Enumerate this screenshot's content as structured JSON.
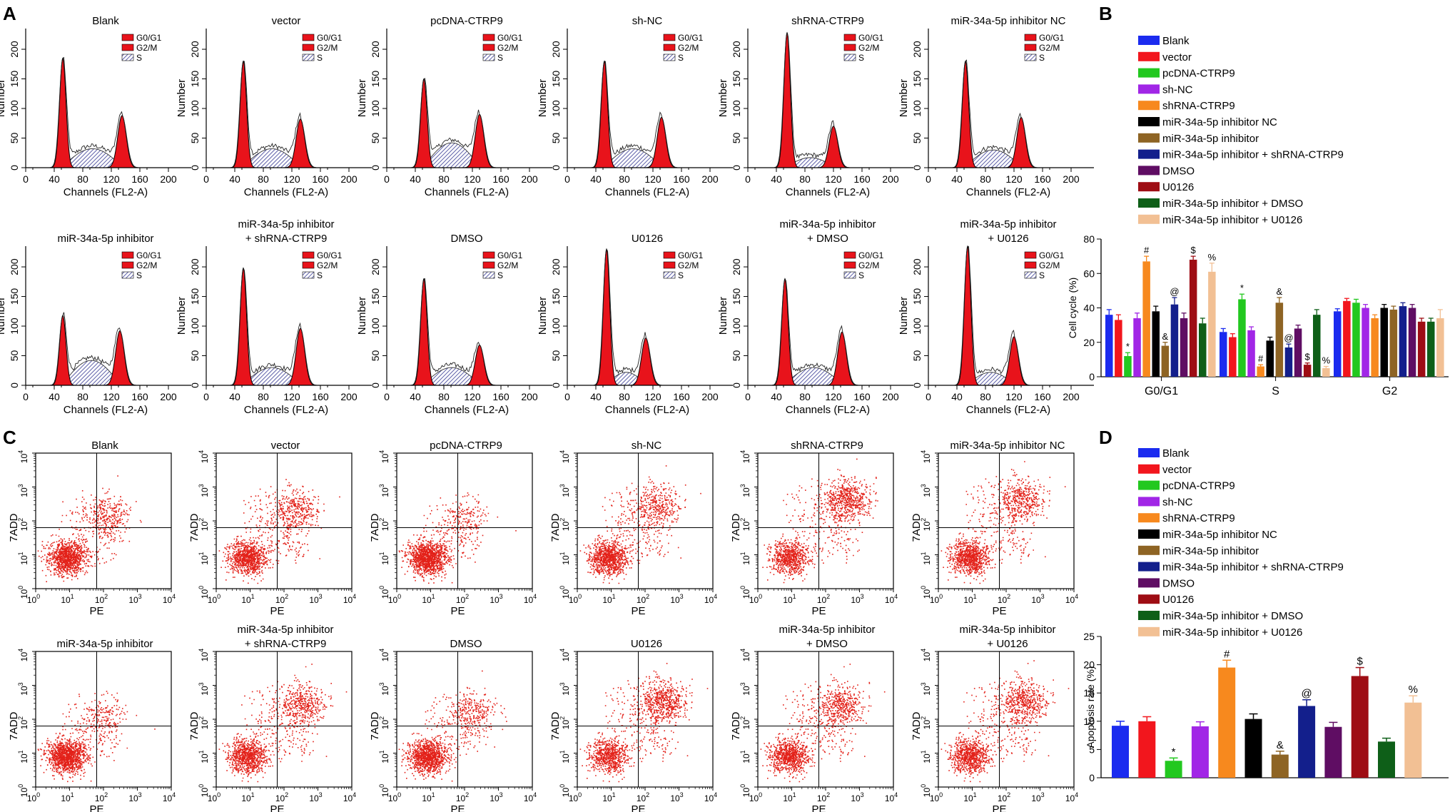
{
  "figure": {
    "panel_labels": [
      "A",
      "B",
      "C",
      "D"
    ],
    "colors": {
      "peak": "#e8131b",
      "s_fill": "#5d5fa8",
      "dot": "#e32119",
      "axis": "#000000"
    }
  },
  "chart_data": [
    {
      "panel": "A",
      "type": "histogram",
      "xlabel": "Channels (FL2-A)",
      "ylabel": "Number",
      "x_ticks": [
        "0",
        "40",
        "80",
        "120",
        "160",
        "200"
      ],
      "y_ticks": [
        "0",
        "50",
        "100",
        "150",
        "200"
      ],
      "xlim": [
        0,
        200
      ],
      "ylim": [
        0,
        235
      ],
      "legend": [
        "G0/G1",
        "G2/M",
        "S"
      ],
      "plots": [
        {
          "title": [
            "Blank"
          ],
          "g1": 52,
          "g1h": 185,
          "g2": 135,
          "g2h": 88,
          "s": 30
        },
        {
          "title": [
            "vector"
          ],
          "g1": 52,
          "g1h": 180,
          "g2": 132,
          "g2h": 82,
          "s": 30
        },
        {
          "title": [
            "pcDNA-CTRP9"
          ],
          "g1": 52,
          "g1h": 150,
          "g2": 130,
          "g2h": 90,
          "s": 40
        },
        {
          "title": [
            "sh-NC"
          ],
          "g1": 52,
          "g1h": 180,
          "g2": 132,
          "g2h": 85,
          "s": 30
        },
        {
          "title": [
            "shRNA-CTRP9"
          ],
          "g1": 55,
          "g1h": 228,
          "g2": 120,
          "g2h": 70,
          "s": 15
        },
        {
          "title": [
            "miR-34a-5p inhibitor NC"
          ],
          "g1": 52,
          "g1h": 180,
          "g2": 130,
          "g2h": 85,
          "s": 28
        },
        {
          "title": [
            "miR-34a-5p inhibitor"
          ],
          "g1": 52,
          "g1h": 118,
          "g2": 132,
          "g2h": 92,
          "s": 40
        },
        {
          "title": [
            "miR-34a-5p inhibitor",
            "+ shRNA-CTRP9"
          ],
          "g1": 52,
          "g1h": 198,
          "g2": 132,
          "g2h": 96,
          "s": 28
        },
        {
          "title": [
            "DMSO"
          ],
          "g1": 52,
          "g1h": 180,
          "g2": 130,
          "g2h": 68,
          "s": 28
        },
        {
          "title": [
            "U0126"
          ],
          "g1": 55,
          "g1h": 230,
          "g2": 110,
          "g2h": 80,
          "s": 20
        },
        {
          "title": [
            "miR-34a-5p inhibitor",
            "+ DMSO"
          ],
          "g1": 52,
          "g1h": 180,
          "g2": 132,
          "g2h": 90,
          "s": 28
        },
        {
          "title": [
            "miR-34a-5p inhibitor",
            "+ U0126"
          ],
          "g1": 55,
          "g1h": 235,
          "g2": 120,
          "g2h": 82,
          "s": 20
        }
      ]
    },
    {
      "panel": "B",
      "type": "bar",
      "ylabel": "Cell cycle (%)",
      "ylim": [
        0,
        80
      ],
      "y_ticks": [
        "0",
        "20",
        "40",
        "60",
        "80"
      ],
      "categories": [
        "G0/G1",
        "S",
        "G2"
      ],
      "series": [
        {
          "name": "Blank",
          "color": "#1b2bef",
          "values": [
            36,
            26,
            38
          ],
          "errors": [
            3,
            2,
            1.5
          ],
          "sig": [
            "",
            "",
            ""
          ]
        },
        {
          "name": "vector",
          "color": "#f2161d",
          "values": [
            33,
            23,
            44
          ],
          "errors": [
            3,
            2,
            1.5
          ],
          "sig": [
            "",
            "",
            ""
          ]
        },
        {
          "name": "pcDNA-CTRP9",
          "color": "#22c81f",
          "values": [
            12,
            45,
            43
          ],
          "errors": [
            2,
            3,
            2
          ],
          "sig": [
            "*",
            "*",
            ""
          ]
        },
        {
          "name": "sh-NC",
          "color": "#a126e6",
          "values": [
            34,
            27,
            40
          ],
          "errors": [
            3,
            2,
            2
          ],
          "sig": [
            "",
            "",
            ""
          ]
        },
        {
          "name": "shRNA-CTRP9",
          "color": "#f7891e",
          "values": [
            67,
            6,
            34
          ],
          "errors": [
            3,
            1,
            2
          ],
          "sig": [
            "#",
            "#",
            ""
          ]
        },
        {
          "name": "miR-34a-5p inhibitor NC",
          "color": "#000000",
          "values": [
            38,
            21,
            40
          ],
          "errors": [
            3,
            2,
            2
          ],
          "sig": [
            "",
            "",
            ""
          ]
        },
        {
          "name": "miR-34a-5p inhibitor",
          "color": "#8e6424",
          "values": [
            18,
            43,
            39
          ],
          "errors": [
            2,
            3,
            2
          ],
          "sig": [
            "&",
            "&",
            ""
          ]
        },
        {
          "name": "miR-34a-5p inhibitor + shRNA-CTRP9",
          "color": "#131f8c",
          "values": [
            42,
            17,
            41
          ],
          "errors": [
            4,
            2,
            2
          ],
          "sig": [
            "@",
            "@",
            ""
          ]
        },
        {
          "name": "DMSO",
          "color": "#5f0d63",
          "values": [
            34,
            28,
            40
          ],
          "errors": [
            3,
            2,
            2
          ],
          "sig": [
            "",
            "",
            ""
          ]
        },
        {
          "name": "U0126",
          "color": "#9e0d14",
          "values": [
            68,
            7,
            32
          ],
          "errors": [
            2,
            1,
            2
          ],
          "sig": [
            "$",
            "$",
            ""
          ]
        },
        {
          "name": "miR-34a-5p inhibitor + DMSO",
          "color": "#0e5f18",
          "values": [
            31,
            36,
            32
          ],
          "errors": [
            3,
            3,
            2
          ],
          "sig": [
            "",
            "",
            ""
          ]
        },
        {
          "name": "miR-34a-5p inhibitor + U0126",
          "color": "#f2c094",
          "values": [
            61,
            5,
            34
          ],
          "errors": [
            5,
            1,
            5
          ],
          "sig": [
            "%",
            "%",
            ""
          ]
        }
      ]
    },
    {
      "panel": "C",
      "type": "scatter",
      "xlabel": "PE",
      "ylabel": "7ADD",
      "axis": "log",
      "ticks": [
        "0",
        "1",
        "2",
        "3",
        "4"
      ],
      "tick_base": "10",
      "gate": [
        1.8,
        1.8
      ],
      "plots": [
        {
          "title": [
            "Blank"
          ],
          "main": [
            0.9,
            0.9
          ],
          "sec": [
            2.1,
            2.1
          ],
          "fm": 0.7,
          "fs": 0.2
        },
        {
          "title": [
            "vector"
          ],
          "main": [
            0.9,
            0.9
          ],
          "sec": [
            2.3,
            2.3
          ],
          "fm": 0.6,
          "fs": 0.25
        },
        {
          "title": [
            "pcDNA-CTRP9"
          ],
          "main": [
            0.9,
            0.9
          ],
          "sec": [
            2.0,
            2.0
          ],
          "fm": 0.8,
          "fs": 0.12
        },
        {
          "title": [
            "sh-NC"
          ],
          "main": [
            0.9,
            0.9
          ],
          "sec": [
            2.3,
            2.4
          ],
          "fm": 0.6,
          "fs": 0.25
        },
        {
          "title": [
            "shRNA-CTRP9"
          ],
          "main": [
            0.9,
            0.9
          ],
          "sec": [
            2.6,
            2.6
          ],
          "fm": 0.45,
          "fs": 0.4
        },
        {
          "title": [
            "miR-34a-5p inhibitor NC"
          ],
          "main": [
            0.9,
            0.9
          ],
          "sec": [
            2.4,
            2.6
          ],
          "fm": 0.55,
          "fs": 0.3
        },
        {
          "title": [
            "miR-34a-5p inhibitor"
          ],
          "main": [
            0.9,
            0.9
          ],
          "sec": [
            2.0,
            2.0
          ],
          "fm": 0.8,
          "fs": 0.12
        },
        {
          "title": [
            "miR-34a-5p inhibitor",
            "+ shRNA-CTRP9"
          ],
          "main": [
            0.9,
            0.9
          ],
          "sec": [
            2.5,
            2.4
          ],
          "fm": 0.55,
          "fs": 0.3
        },
        {
          "title": [
            "DMSO"
          ],
          "main": [
            0.9,
            0.9
          ],
          "sec": [
            2.2,
            2.2
          ],
          "fm": 0.7,
          "fs": 0.2
        },
        {
          "title": [
            "U0126"
          ],
          "main": [
            0.9,
            0.9
          ],
          "sec": [
            2.5,
            2.5
          ],
          "fm": 0.45,
          "fs": 0.4
        },
        {
          "title": [
            "miR-34a-5p inhibitor",
            "+ DMSO"
          ],
          "main": [
            0.9,
            0.9
          ],
          "sec": [
            2.4,
            2.4
          ],
          "fm": 0.55,
          "fs": 0.3
        },
        {
          "title": [
            "miR-34a-5p inhibitor",
            "+ U0126"
          ],
          "main": [
            0.9,
            0.9
          ],
          "sec": [
            2.5,
            2.5
          ],
          "fm": 0.5,
          "fs": 0.35
        }
      ]
    },
    {
      "panel": "D",
      "type": "bar",
      "ylabel": "Apoptosis rate (%)",
      "ylim": [
        0,
        25
      ],
      "y_ticks": [
        "0",
        "5",
        "10",
        "15",
        "20",
        "25"
      ],
      "series": [
        {
          "name": "Blank",
          "color": "#1b2bef",
          "value": 9.2,
          "error": 0.8,
          "sig": ""
        },
        {
          "name": "vector",
          "color": "#f2161d",
          "value": 10.0,
          "error": 0.8,
          "sig": ""
        },
        {
          "name": "pcDNA-CTRP9",
          "color": "#22c81f",
          "value": 3.0,
          "error": 0.5,
          "sig": "*"
        },
        {
          "name": "sh-NC",
          "color": "#a126e6",
          "value": 9.1,
          "error": 0.8,
          "sig": ""
        },
        {
          "name": "shRNA-CTRP9",
          "color": "#f7891e",
          "value": 19.5,
          "error": 1.3,
          "sig": "#"
        },
        {
          "name": "miR-34a-5p inhibitor NC",
          "color": "#000000",
          "value": 10.4,
          "error": 0.9,
          "sig": ""
        },
        {
          "name": "miR-34a-5p inhibitor",
          "color": "#8e6424",
          "value": 4.1,
          "error": 0.6,
          "sig": "&"
        },
        {
          "name": "miR-34a-5p inhibitor + shRNA-CTRP9",
          "color": "#131f8c",
          "value": 12.7,
          "error": 1.1,
          "sig": "@"
        },
        {
          "name": "DMSO",
          "color": "#5f0d63",
          "value": 9.0,
          "error": 0.8,
          "sig": ""
        },
        {
          "name": "U0126",
          "color": "#9e0d14",
          "value": 18.0,
          "error": 1.5,
          "sig": "$"
        },
        {
          "name": "miR-34a-5p inhibitor + DMSO",
          "color": "#0e5f18",
          "value": 6.4,
          "error": 0.6,
          "sig": ""
        },
        {
          "name": "miR-34a-5p inhibitor + U0126",
          "color": "#f2c094",
          "value": 13.3,
          "error": 1.2,
          "sig": "%"
        }
      ]
    }
  ]
}
